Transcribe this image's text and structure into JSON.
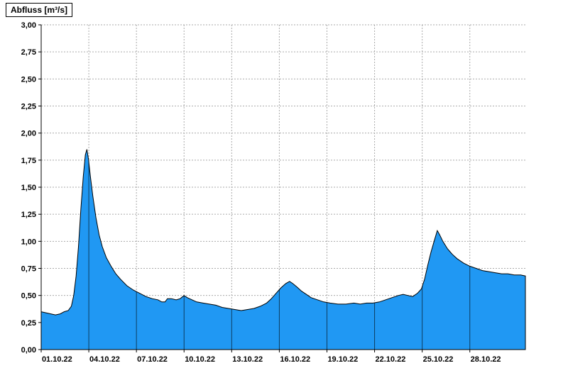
{
  "title": "Abfluss [m³/s]",
  "chart_data": {
    "type": "area",
    "title": "Abfluss [m³/s]",
    "ylabel": "Abfluss [m³/s]",
    "xlabel": "",
    "unit": "m³/s",
    "ylim": [
      0.0,
      3.0
    ],
    "y_tick_step": 0.25,
    "y_tick_values": [
      0.0,
      0.25,
      0.5,
      0.75,
      1.0,
      1.25,
      1.5,
      1.75,
      2.0,
      2.25,
      2.5,
      2.75,
      3.0
    ],
    "y_tick_labels": [
      "0,00",
      "0,25",
      "0,50",
      "0,75",
      "1,00",
      "1,25",
      "1,50",
      "1,75",
      "2,00",
      "2,25",
      "2,50",
      "2,75",
      "3,00"
    ],
    "x_range_days": [
      0,
      30.5
    ],
    "x_tick_days": [
      0,
      3,
      6,
      9,
      12,
      15,
      18,
      21,
      24,
      27
    ],
    "x_tick_labels": [
      "01.10.22",
      "04.10.22",
      "07.10.22",
      "10.10.22",
      "13.10.22",
      "16.10.22",
      "19.10.22",
      "22.10.22",
      "25.10.22",
      "28.10.22"
    ],
    "grid": true,
    "legend": "none",
    "colors": {
      "fill": "#2098F3",
      "outline": "#000000",
      "grid": "#aaaaaa",
      "inner_grid": "#000000",
      "axis": "#000000",
      "background": "#ffffff"
    },
    "series": [
      {
        "name": "Abfluss",
        "points": [
          [
            0.0,
            0.35
          ],
          [
            0.3,
            0.34
          ],
          [
            0.6,
            0.33
          ],
          [
            0.9,
            0.32
          ],
          [
            1.2,
            0.33
          ],
          [
            1.45,
            0.35
          ],
          [
            1.7,
            0.36
          ],
          [
            1.9,
            0.4
          ],
          [
            2.05,
            0.5
          ],
          [
            2.2,
            0.68
          ],
          [
            2.35,
            0.95
          ],
          [
            2.5,
            1.3
          ],
          [
            2.65,
            1.6
          ],
          [
            2.78,
            1.8
          ],
          [
            2.88,
            1.85
          ],
          [
            2.98,
            1.76
          ],
          [
            3.1,
            1.6
          ],
          [
            3.25,
            1.42
          ],
          [
            3.45,
            1.22
          ],
          [
            3.65,
            1.06
          ],
          [
            3.85,
            0.95
          ],
          [
            4.1,
            0.85
          ],
          [
            4.4,
            0.77
          ],
          [
            4.7,
            0.7
          ],
          [
            5.0,
            0.65
          ],
          [
            5.4,
            0.59
          ],
          [
            5.8,
            0.55
          ],
          [
            6.2,
            0.52
          ],
          [
            6.6,
            0.49
          ],
          [
            7.0,
            0.47
          ],
          [
            7.35,
            0.46
          ],
          [
            7.6,
            0.44
          ],
          [
            7.8,
            0.44
          ],
          [
            7.95,
            0.47
          ],
          [
            8.2,
            0.47
          ],
          [
            8.5,
            0.46
          ],
          [
            8.75,
            0.47
          ],
          [
            9.0,
            0.5
          ],
          [
            9.2,
            0.48
          ],
          [
            9.5,
            0.46
          ],
          [
            9.8,
            0.44
          ],
          [
            10.2,
            0.43
          ],
          [
            10.6,
            0.42
          ],
          [
            11.0,
            0.41
          ],
          [
            11.4,
            0.39
          ],
          [
            11.8,
            0.38
          ],
          [
            12.2,
            0.37
          ],
          [
            12.6,
            0.36
          ],
          [
            13.0,
            0.37
          ],
          [
            13.4,
            0.38
          ],
          [
            13.8,
            0.4
          ],
          [
            14.2,
            0.43
          ],
          [
            14.5,
            0.47
          ],
          [
            14.8,
            0.52
          ],
          [
            15.1,
            0.57
          ],
          [
            15.4,
            0.61
          ],
          [
            15.65,
            0.63
          ],
          [
            15.85,
            0.61
          ],
          [
            16.1,
            0.58
          ],
          [
            16.4,
            0.54
          ],
          [
            16.7,
            0.51
          ],
          [
            17.0,
            0.48
          ],
          [
            17.4,
            0.46
          ],
          [
            17.8,
            0.44
          ],
          [
            18.2,
            0.43
          ],
          [
            18.7,
            0.42
          ],
          [
            19.2,
            0.42
          ],
          [
            19.7,
            0.43
          ],
          [
            20.1,
            0.42
          ],
          [
            20.5,
            0.43
          ],
          [
            20.9,
            0.43
          ],
          [
            21.3,
            0.44
          ],
          [
            21.7,
            0.46
          ],
          [
            22.1,
            0.48
          ],
          [
            22.5,
            0.5
          ],
          [
            22.8,
            0.51
          ],
          [
            23.1,
            0.5
          ],
          [
            23.4,
            0.49
          ],
          [
            23.7,
            0.52
          ],
          [
            23.95,
            0.56
          ],
          [
            24.15,
            0.65
          ],
          [
            24.35,
            0.78
          ],
          [
            24.55,
            0.9
          ],
          [
            24.75,
            1.0
          ],
          [
            24.95,
            1.1
          ],
          [
            25.1,
            1.06
          ],
          [
            25.3,
            1.0
          ],
          [
            25.6,
            0.93
          ],
          [
            25.9,
            0.88
          ],
          [
            26.2,
            0.84
          ],
          [
            26.6,
            0.8
          ],
          [
            27.0,
            0.77
          ],
          [
            27.4,
            0.75
          ],
          [
            27.8,
            0.73
          ],
          [
            28.2,
            0.72
          ],
          [
            28.6,
            0.71
          ],
          [
            29.0,
            0.7
          ],
          [
            29.4,
            0.7
          ],
          [
            29.8,
            0.69
          ],
          [
            30.2,
            0.69
          ],
          [
            30.5,
            0.68
          ]
        ]
      }
    ]
  }
}
